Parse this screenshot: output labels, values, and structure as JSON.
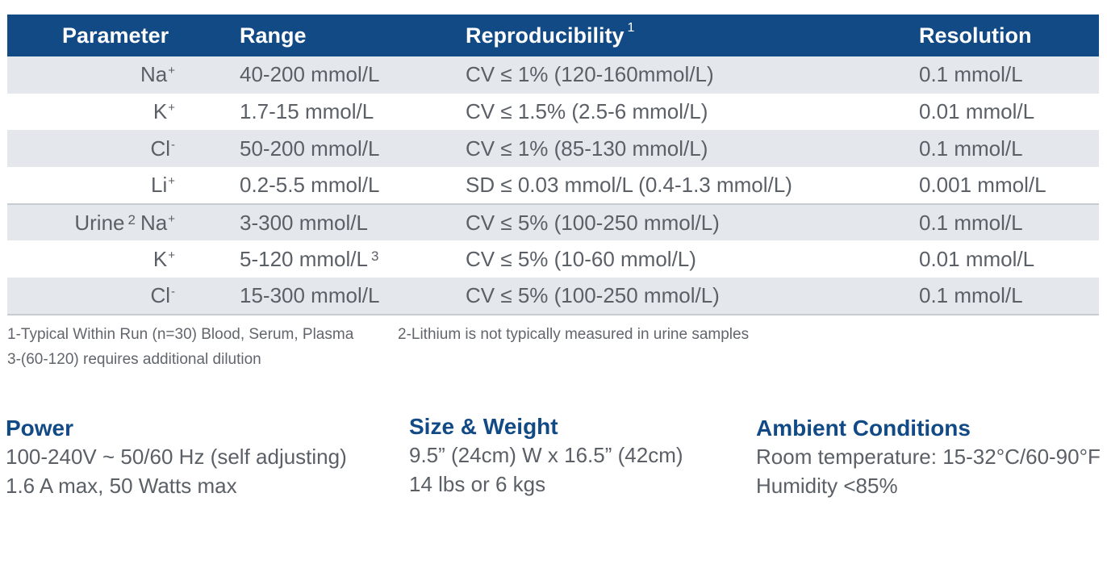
{
  "table": {
    "headers": {
      "parameter": "Parameter",
      "range": "Range",
      "reproducibility": "Reproducibility",
      "reproducibility_note": "1",
      "resolution": "Resolution"
    },
    "rows": [
      {
        "group": "",
        "group_note": "",
        "ion": "Na",
        "charge": "+",
        "range": "40-200 mmol/L",
        "range_note": "",
        "reproducibility": "CV ≤ 1% (120-160mmol/L)",
        "resolution": "0.1 mmol/L"
      },
      {
        "group": "",
        "group_note": "",
        "ion": "K",
        "charge": "+",
        "range": "1.7-15 mmol/L",
        "range_note": "",
        "reproducibility": "CV ≤ 1.5% (2.5-6 mmol/L)",
        "resolution": "0.01 mmol/L"
      },
      {
        "group": "",
        "group_note": "",
        "ion": "Cl",
        "charge": "-",
        "range": "50-200 mmol/L",
        "range_note": "",
        "reproducibility": "CV ≤ 1% (85-130 mmol/L)",
        "resolution": "0.1 mmol/L"
      },
      {
        "group": "",
        "group_note": "",
        "ion": "Li",
        "charge": "+",
        "range": "0.2-5.5 mmol/L",
        "range_note": "",
        "reproducibility": "SD ≤ 0.03 mmol/L (0.4-1.3 mmol/L)",
        "resolution": "0.001 mmol/L"
      },
      {
        "group": "Urine",
        "group_note": "2",
        "ion": "Na",
        "charge": "+",
        "range": "3-300 mmol/L",
        "range_note": "",
        "reproducibility": "CV ≤ 5% (100-250 mmol/L)",
        "resolution": "0.1 mmol/L"
      },
      {
        "group": "",
        "group_note": "",
        "ion": "K",
        "charge": "+",
        "range": "5-120 mmol/L",
        "range_note": "3",
        "reproducibility": "CV ≤ 5% (10-60 mmol/L)",
        "resolution": "0.01 mmol/L"
      },
      {
        "group": "",
        "group_note": "",
        "ion": "Cl",
        "charge": "-",
        "range": "15-300 mmol/L",
        "range_note": "",
        "reproducibility": "CV ≤ 5% (100-250 mmol/L)",
        "resolution": "0.1 mmol/L"
      }
    ]
  },
  "footnotes": {
    "note1": "1-Typical Within Run (n=30) Blood, Serum, Plasma",
    "note2": "2-Lithium is not typically measured in urine samples",
    "note3": "3-(60-120) requires additional dilution"
  },
  "specs": {
    "power": {
      "title": "Power",
      "lines": [
        "100-240V ~ 50/60 Hz (self adjusting)",
        "1.6 A max, 50 Watts max"
      ]
    },
    "size_weight": {
      "title": "Size & Weight",
      "lines": [
        "9.5” (24cm) W x 16.5” (42cm)",
        "14 lbs  or  6 kgs"
      ]
    },
    "ambient": {
      "title": "Ambient Conditions",
      "lines": [
        "Room temperature: 15-32°C/60-90°F",
        "Humidity <85%"
      ]
    }
  },
  "colors": {
    "header_bg": "#124a86",
    "row_shade": "#e4e7ec",
    "title_blue": "#124a86",
    "text_gray": "#5b5f66"
  }
}
